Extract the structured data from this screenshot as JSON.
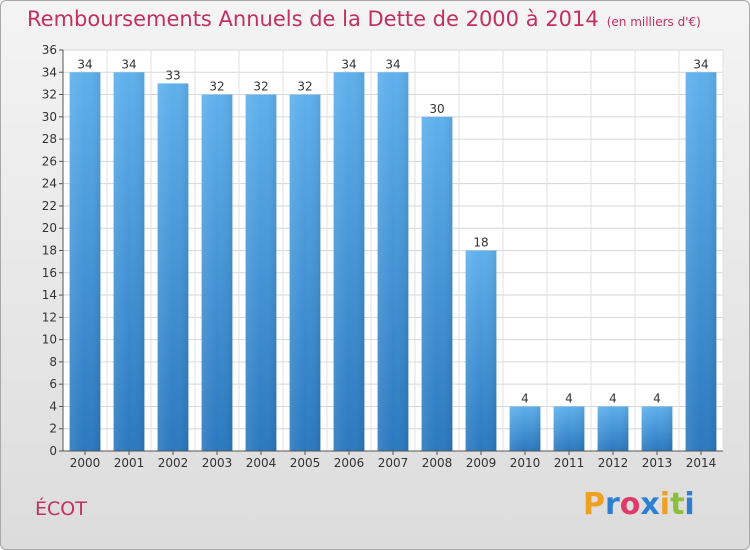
{
  "chart_data": {
    "type": "bar",
    "title": "Remboursements Annuels de la Dette de 2000 à 2014",
    "unit": "(en milliers d'€)",
    "categories": [
      "2000",
      "2001",
      "2002",
      "2003",
      "2004",
      "2005",
      "2006",
      "2007",
      "2008",
      "2009",
      "2010",
      "2011",
      "2012",
      "2013",
      "2014"
    ],
    "values": [
      34,
      34,
      33,
      32,
      32,
      32,
      34,
      34,
      30,
      18,
      4,
      4,
      4,
      4,
      34
    ],
    "ylim": [
      0,
      36
    ],
    "yticks": [
      0,
      2,
      4,
      6,
      8,
      10,
      12,
      14,
      16,
      18,
      20,
      22,
      24,
      26,
      28,
      30,
      32,
      34,
      36
    ],
    "grid": true,
    "bar_color": "#3d8fd6"
  },
  "commune": "ÉCOT",
  "logo": {
    "letters": [
      "P",
      "r",
      "o",
      "x",
      "i",
      "t",
      "i"
    ],
    "colors": [
      "#f0a020",
      "#2f7fd0",
      "#e03a6a",
      "#2f7fd0",
      "#f0a020",
      "#8cbf3a",
      "#2f7fd0"
    ]
  }
}
